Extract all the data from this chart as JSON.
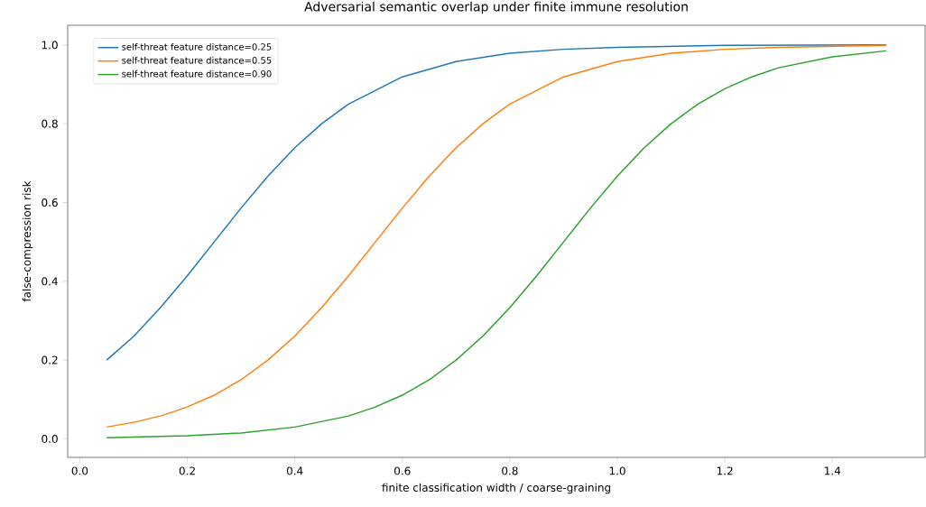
{
  "chart_data": {
    "type": "line",
    "title": "Adversarial semantic overlap under finite immune resolution",
    "xlabel": "finite classification width / coarse-graining",
    "ylabel": "false-compression risk",
    "xlim": [
      -0.0225,
      1.5725
    ],
    "ylim": [
      -0.047,
      1.05
    ],
    "xticks": [
      {
        "value": 0,
        "label": "0.0"
      },
      0.2,
      0.4,
      0.6,
      0.8,
      {
        "value": 1,
        "label": "1.0"
      },
      1.2,
      1.4
    ],
    "yticks": [
      {
        "value": 0,
        "label": "0.0"
      },
      0.2,
      0.4,
      0.6,
      0.8,
      {
        "value": 1,
        "label": "1.0"
      }
    ],
    "legend": "top left",
    "series": [
      {
        "name": "self-threat feature distance=0.25",
        "color": "#1f77b4",
        "x": [
          0.05,
          0.1,
          0.15,
          0.2,
          0.25,
          0.3,
          0.35,
          0.4,
          0.45,
          0.5,
          0.6,
          0.7,
          0.8,
          0.9,
          1.0,
          1.2,
          1.5
        ],
        "values": [
          0.2,
          0.26,
          0.333,
          0.414,
          0.5,
          0.586,
          0.667,
          0.739,
          0.8,
          0.85,
          0.919,
          0.958,
          0.979,
          0.989,
          0.994,
          0.999,
          1.0
        ]
      },
      {
        "name": "self-threat feature distance=0.55",
        "color": "#ff7f0e",
        "x": [
          0.05,
          0.1,
          0.15,
          0.2,
          0.25,
          0.3,
          0.35,
          0.4,
          0.45,
          0.5,
          0.55,
          0.6,
          0.65,
          0.7,
          0.75,
          0.8,
          0.9,
          1.0,
          1.1,
          1.2,
          1.3,
          1.5
        ],
        "values": [
          0.03,
          0.042,
          0.058,
          0.081,
          0.111,
          0.15,
          0.2,
          0.261,
          0.333,
          0.414,
          0.5,
          0.586,
          0.667,
          0.739,
          0.8,
          0.85,
          0.919,
          0.958,
          0.979,
          0.989,
          0.994,
          0.999
        ]
      },
      {
        "name": "self-threat feature distance=0.90",
        "color": "#2ca02c",
        "x": [
          0.05,
          0.2,
          0.3,
          0.4,
          0.5,
          0.55,
          0.6,
          0.65,
          0.7,
          0.75,
          0.8,
          0.85,
          0.9,
          0.95,
          1.0,
          1.05,
          1.1,
          1.15,
          1.2,
          1.25,
          1.3,
          1.4,
          1.5
        ],
        "values": [
          0.003,
          0.008,
          0.015,
          0.03,
          0.058,
          0.081,
          0.111,
          0.15,
          0.2,
          0.261,
          0.333,
          0.414,
          0.5,
          0.586,
          0.667,
          0.739,
          0.8,
          0.85,
          0.889,
          0.919,
          0.942,
          0.97,
          0.985
        ]
      }
    ]
  }
}
